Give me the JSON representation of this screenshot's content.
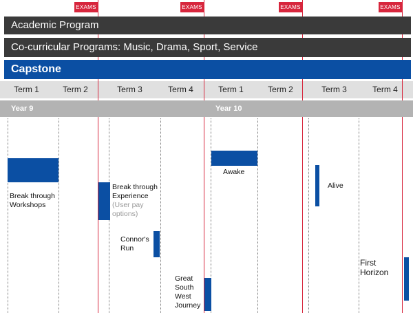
{
  "exam_label": "EXAMS",
  "bands": {
    "academic": "Academic Program",
    "cocurricular": "Co-curricular Programs: Music, Drama, Sport, Service",
    "capstone": "Capstone"
  },
  "terms": [
    "Term 1",
    "Term 2",
    "Term 3",
    "Term 4",
    "Term 1",
    "Term 2",
    "Term 3",
    "Term 4"
  ],
  "years": [
    "Year 9",
    "Year 10"
  ],
  "programs": {
    "breakthrough_workshops": {
      "line1": "Break through",
      "line2": "Workshops"
    },
    "breakthrough_experience": {
      "line1": "Break through",
      "line2": "Experience",
      "line3": "(User pay",
      "line4": "options)"
    },
    "connors_run": {
      "line1": "Connor's",
      "line2": "Run"
    },
    "great_south_west": {
      "line1": "Great",
      "line2": "South",
      "line3": "West",
      "line4": "Journey"
    },
    "awake": "Awake",
    "alive": "Alive",
    "first_horizon": {
      "line1": "First",
      "line2": "Horizon"
    }
  },
  "colors": {
    "exam_red": "#d7263d",
    "band_dark": "#3a3a3a",
    "capstone_blue": "#0b4fa3",
    "term_grey": "#e0e0e0",
    "year_grey": "#b3b3b3"
  }
}
